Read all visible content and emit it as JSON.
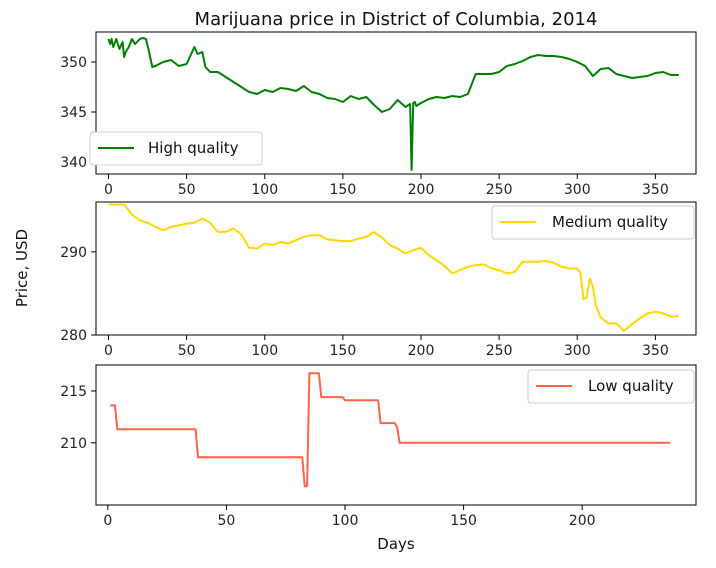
{
  "chart_data": {
    "title": "Marijuana price in District of Columbia, 2014",
    "ylabel": "Price, USD",
    "xlabel": "Days",
    "panels": [
      {
        "type": "line",
        "name": "High quality",
        "color": "#008000",
        "legend_position": "lower-left",
        "xlim": [
          -8,
          376
        ],
        "ylim": [
          338.8,
          353.0
        ],
        "xticks": [
          0,
          50,
          100,
          150,
          200,
          250,
          300,
          350
        ],
        "yticks": [
          340,
          345,
          350
        ],
        "x": [
          0,
          1,
          2,
          3,
          5,
          7,
          9,
          10,
          11,
          13,
          15,
          17,
          20,
          22,
          24,
          26,
          28,
          30,
          35,
          40,
          45,
          50,
          55,
          57,
          60,
          62,
          65,
          70,
          75,
          80,
          85,
          90,
          95,
          100,
          105,
          110,
          115,
          120,
          125,
          130,
          135,
          140,
          145,
          150,
          155,
          160,
          165,
          170,
          175,
          180,
          185,
          190,
          193,
          194,
          195,
          196,
          197,
          200,
          205,
          210,
          215,
          220,
          225,
          230,
          235,
          240,
          245,
          250,
          255,
          260,
          265,
          270,
          275,
          280,
          285,
          290,
          295,
          300,
          305,
          310,
          315,
          320,
          325,
          330,
          335,
          340,
          345,
          350,
          355,
          360,
          365
        ],
        "y": [
          352.3,
          351.8,
          352.3,
          351.5,
          352.3,
          351.3,
          352.0,
          350.5,
          351.0,
          351.5,
          352.3,
          351.8,
          352.3,
          352.4,
          352.3,
          351.0,
          349.5,
          349.6,
          350.0,
          350.2,
          349.6,
          349.8,
          351.5,
          350.8,
          351.0,
          349.5,
          349.0,
          349.0,
          348.5,
          348.0,
          347.5,
          347.0,
          346.8,
          347.2,
          347.0,
          347.4,
          347.3,
          347.1,
          347.6,
          347.0,
          346.8,
          346.4,
          346.3,
          346.0,
          346.6,
          346.3,
          346.5,
          345.7,
          345.0,
          345.3,
          346.2,
          345.5,
          345.8,
          339.2,
          345.9,
          346.0,
          345.6,
          345.9,
          346.3,
          346.5,
          346.4,
          346.6,
          346.5,
          346.8,
          348.8,
          348.8,
          348.8,
          349.0,
          349.6,
          349.8,
          350.1,
          350.5,
          350.7,
          350.6,
          350.6,
          350.5,
          350.3,
          350.0,
          349.6,
          348.6,
          349.3,
          349.4,
          348.8,
          348.6,
          348.4,
          348.5,
          348.6,
          348.9,
          349.0,
          348.7,
          348.7
        ]
      },
      {
        "type": "line",
        "name": "Medium quality",
        "color": "#FFD700",
        "legend_position": "upper-right",
        "xlim": [
          -8,
          376
        ],
        "ylim": [
          280.0,
          296.0
        ],
        "xticks": [
          0,
          50,
          100,
          150,
          200,
          250,
          300,
          350
        ],
        "yticks": [
          280,
          290
        ],
        "x": [
          0,
          5,
          10,
          15,
          20,
          25,
          30,
          35,
          40,
          45,
          50,
          55,
          60,
          65,
          70,
          75,
          80,
          85,
          90,
          95,
          100,
          105,
          110,
          115,
          120,
          125,
          130,
          135,
          140,
          145,
          150,
          155,
          160,
          165,
          170,
          175,
          180,
          185,
          190,
          195,
          200,
          205,
          210,
          215,
          220,
          225,
          230,
          235,
          240,
          245,
          250,
          255,
          260,
          265,
          270,
          275,
          280,
          285,
          290,
          295,
          300,
          302,
          304,
          306,
          308,
          310,
          312,
          315,
          320,
          325,
          330,
          335,
          340,
          345,
          350,
          355,
          360,
          365
        ],
        "y": [
          295.7,
          295.7,
          295.7,
          294.5,
          293.8,
          293.5,
          293.0,
          292.6,
          293.0,
          293.2,
          293.4,
          293.5,
          294.0,
          293.5,
          292.4,
          292.4,
          292.8,
          292.1,
          290.5,
          290.4,
          291.0,
          290.8,
          291.2,
          291.0,
          291.4,
          291.8,
          292.0,
          292.0,
          291.5,
          291.4,
          291.3,
          291.3,
          291.6,
          291.8,
          292.4,
          291.7,
          290.8,
          290.4,
          289.8,
          290.2,
          290.5,
          289.6,
          289.0,
          288.3,
          287.4,
          287.8,
          288.2,
          288.4,
          288.5,
          288.0,
          287.8,
          287.4,
          287.6,
          288.8,
          288.8,
          288.8,
          288.9,
          288.7,
          288.2,
          288.0,
          288.0,
          287.5,
          284.3,
          284.5,
          286.8,
          285.8,
          283.5,
          282.1,
          281.4,
          281.4,
          280.5,
          281.3,
          282.0,
          282.6,
          282.8,
          282.6,
          282.2,
          282.3
        ]
      },
      {
        "type": "line",
        "name": "Low quality",
        "color": "#FF6347",
        "legend_position": "upper-right",
        "xlim": [
          -5,
          248
        ],
        "ylim": [
          204.0,
          217.5
        ],
        "xticks": [
          0,
          50,
          100,
          150,
          200
        ],
        "yticks": [
          210,
          215
        ],
        "x": [
          1,
          2,
          3,
          4,
          36,
          37,
          38,
          82,
          83,
          84,
          85,
          86,
          89,
          90,
          99,
          100,
          114,
          115,
          121,
          122,
          123,
          124,
          237
        ],
        "y": [
          213.6,
          213.6,
          213.6,
          211.3,
          211.3,
          211.3,
          208.6,
          208.6,
          205.8,
          205.8,
          216.7,
          216.7,
          216.7,
          214.4,
          214.4,
          214.1,
          214.1,
          211.9,
          211.9,
          211.5,
          210.0,
          210.0,
          210.0
        ]
      }
    ]
  }
}
